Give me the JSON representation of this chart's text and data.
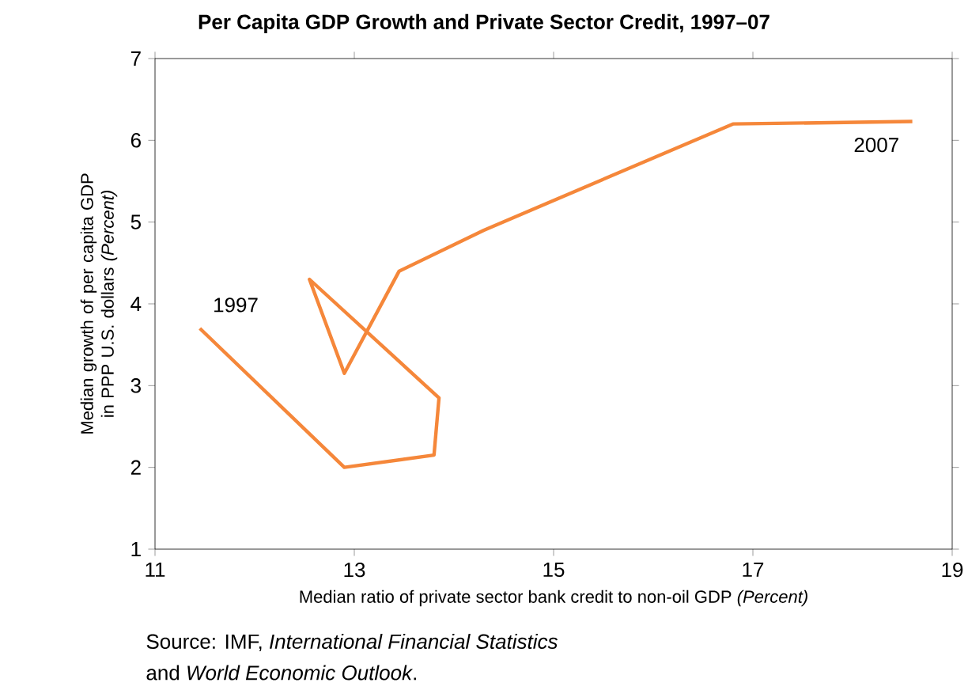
{
  "chart_data": {
    "type": "line",
    "title": "Per Capita GDP Growth and Private Sector Credit, 1997–07",
    "xlabel": "Median ratio of private sector bank credit to non-oil GDP *(Percent)*",
    "ylabel": "Median growth of per capita GDP in PPP U.S. dollars *(Percent)*",
    "x": [
      11.45,
      12.9,
      13.8,
      13.85,
      12.55,
      12.9,
      13.45,
      14.3,
      16.8,
      18.6
    ],
    "series": [
      {
        "color": "#f5873a",
        "values": [
          3.7,
          2.0,
          2.15,
          2.85,
          4.3,
          3.15,
          4.4,
          4.9,
          6.2,
          6.23
        ]
      }
    ],
    "xlim": [
      11,
      19
    ],
    "xticks": [
      11,
      13,
      15,
      17,
      19
    ],
    "ylim": [
      1,
      7
    ],
    "yticks": [
      1,
      2,
      3,
      4,
      5,
      6,
      7
    ],
    "grid": false,
    "marker": "none",
    "line_style": "solid",
    "annotations": [
      {
        "text": "1997",
        "x": 11.45,
        "y": 3.7
      },
      {
        "text": "2007",
        "x": 18.6,
        "y": 6.23
      },
      "Source: IMF, *International Financial Statistics*",
      "and *World Economic Outlook*."
    ]
  }
}
